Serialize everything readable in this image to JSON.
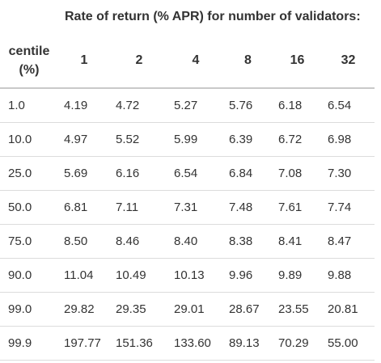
{
  "table": {
    "caption": "Rate of return (% APR) for number of validators:",
    "row_header_line1": "centile",
    "row_header_line2": "(%)",
    "columns": [
      "1",
      "2",
      "4",
      "8",
      "16",
      "32"
    ],
    "rows": [
      {
        "centile": "1.0",
        "values": [
          "4.19",
          "4.72",
          "5.27",
          "5.76",
          "6.18",
          "6.54"
        ]
      },
      {
        "centile": "10.0",
        "values": [
          "4.97",
          "5.52",
          "5.99",
          "6.39",
          "6.72",
          "6.98"
        ]
      },
      {
        "centile": "25.0",
        "values": [
          "5.69",
          "6.16",
          "6.54",
          "6.84",
          "7.08",
          "7.30"
        ]
      },
      {
        "centile": "50.0",
        "values": [
          "6.81",
          "7.11",
          "7.31",
          "7.48",
          "7.61",
          "7.74"
        ]
      },
      {
        "centile": "75.0",
        "values": [
          "8.50",
          "8.46",
          "8.40",
          "8.38",
          "8.41",
          "8.47"
        ]
      },
      {
        "centile": "90.0",
        "values": [
          "11.04",
          "10.49",
          "10.13",
          "9.96",
          "9.89",
          "9.88"
        ]
      },
      {
        "centile": "99.0",
        "values": [
          "29.82",
          "29.35",
          "29.01",
          "28.67",
          "23.55",
          "20.81"
        ]
      },
      {
        "centile": "99.9",
        "values": [
          "197.77",
          "151.36",
          "133.60",
          "89.13",
          "70.29",
          "55.00"
        ]
      }
    ]
  }
}
